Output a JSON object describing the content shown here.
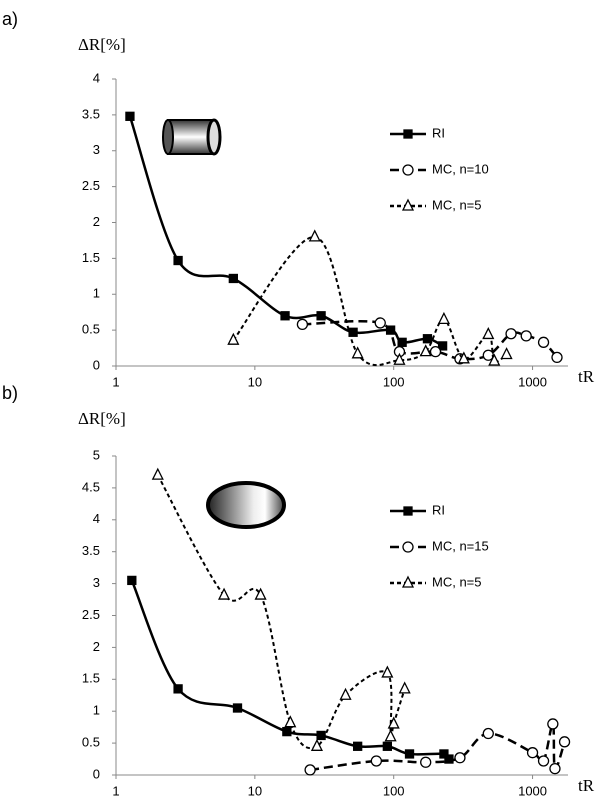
{
  "chart_data": [
    {
      "type": "line",
      "label": "a)",
      "ylabel": "ΔR[%]",
      "xlabel": "tR",
      "log_x": true,
      "xlim": [
        1,
        1800
      ],
      "xticks": [
        1,
        10,
        100,
        1000
      ],
      "ylim": [
        0,
        4
      ],
      "yticks": [
        0,
        0.5,
        1,
        1.5,
        2,
        2.5,
        3,
        3.5,
        4
      ],
      "grid": false,
      "legend": "right",
      "series": [
        {
          "name": "RI",
          "color": "#000000",
          "marker": "square",
          "dash": "solid",
          "x": [
            1.26,
            2.8,
            7,
            16.5,
            30,
            51,
            95,
            115,
            175,
            225
          ],
          "values": [
            3.48,
            1.47,
            1.22,
            0.7,
            0.7,
            0.47,
            0.5,
            0.33,
            0.38,
            0.28
          ]
        },
        {
          "name": "MC, n=10",
          "color": "#000000",
          "marker": "circle",
          "dash": "long",
          "x": [
            22,
            80,
            110,
            200,
            300,
            480,
            700,
            900,
            1200,
            1500
          ],
          "values": [
            0.58,
            0.6,
            0.2,
            0.2,
            0.1,
            0.15,
            0.45,
            0.42,
            0.33,
            0.12
          ]
        },
        {
          "name": "MC, n=5",
          "color": "#000000",
          "marker": "triangle",
          "dash": "short",
          "x": [
            7,
            27,
            55,
            110,
            170,
            230,
            320,
            480,
            530,
            650
          ],
          "values": [
            0.36,
            1.8,
            0.17,
            0.08,
            0.2,
            0.65,
            0.1,
            0.44,
            0.07,
            0.16
          ]
        }
      ]
    },
    {
      "type": "line",
      "label": "b)",
      "ylabel": "ΔR[%]",
      "xlabel": "tR",
      "log_x": true,
      "xlim": [
        1,
        1800
      ],
      "xticks": [
        1,
        10,
        100,
        1000
      ],
      "ylim": [
        0,
        5
      ],
      "yticks": [
        0,
        0.5,
        1,
        1.5,
        2,
        2.5,
        3,
        3.5,
        4,
        4.5,
        5
      ],
      "grid": false,
      "legend": "right",
      "series": [
        {
          "name": "RI",
          "color": "#000000",
          "marker": "square",
          "dash": "solid",
          "x": [
            1.3,
            2.8,
            7.5,
            17,
            30,
            55,
            90,
            130,
            230,
            250
          ],
          "values": [
            3.05,
            1.35,
            1.05,
            0.68,
            0.62,
            0.45,
            0.45,
            0.33,
            0.33,
            0.25
          ]
        },
        {
          "name": "MC, n=15",
          "color": "#000000",
          "marker": "circle",
          "dash": "long",
          "x": [
            25,
            75,
            170,
            300,
            480,
            1000,
            1200,
            1400,
            1450,
            1700
          ],
          "values": [
            0.08,
            0.22,
            0.2,
            0.27,
            0.65,
            0.35,
            0.22,
            0.8,
            0.1,
            0.52
          ]
        },
        {
          "name": "MC, n=5",
          "color": "#000000",
          "marker": "triangle",
          "dash": "short",
          "x": [
            2,
            6,
            11,
            18,
            28,
            45,
            90,
            95,
            100,
            120
          ],
          "values": [
            4.7,
            2.82,
            2.82,
            0.82,
            0.45,
            1.25,
            1.6,
            0.6,
            0.8,
            1.35
          ]
        }
      ]
    }
  ]
}
